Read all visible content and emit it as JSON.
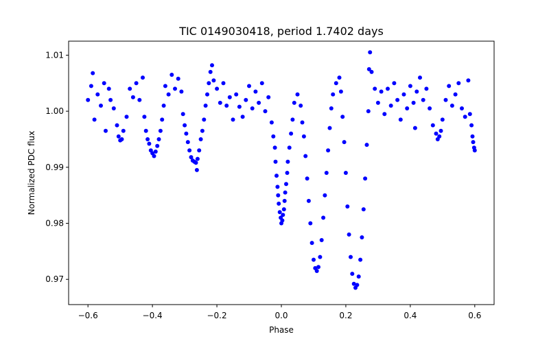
{
  "chart_data": {
    "type": "scatter",
    "title": "TIC 0149030418, period 1.7402 days",
    "xlabel": "Phase",
    "ylabel": "Normalized PDC flux",
    "xlim": [
      -0.66,
      0.66
    ],
    "ylim": [
      0.9655,
      1.0125
    ],
    "x_ticks": [
      -0.6,
      -0.4,
      -0.2,
      0.0,
      0.2,
      0.4,
      0.6
    ],
    "x_tick_labels": [
      "−0.6",
      "−0.4",
      "−0.2",
      "0.0",
      "0.2",
      "0.4",
      "0.6"
    ],
    "y_ticks": [
      0.97,
      0.98,
      0.99,
      1.0,
      1.01
    ],
    "y_tick_labels": [
      "0.97",
      "0.98",
      "0.99",
      "1.00",
      "1.01"
    ],
    "grid": false,
    "marker_color": "#0000ff",
    "series": [
      {
        "points": [
          [
            -0.6,
            1.002
          ],
          [
            -0.59,
            1.0045
          ],
          [
            -0.585,
            1.0068
          ],
          [
            -0.58,
            0.9985
          ],
          [
            -0.57,
            1.003
          ],
          [
            -0.56,
            1.001
          ],
          [
            -0.55,
            1.005
          ],
          [
            -0.545,
            0.9965
          ],
          [
            -0.535,
            1.004
          ],
          [
            -0.53,
            1.002
          ],
          [
            -0.52,
            1.0005
          ],
          [
            -0.51,
            0.9975
          ],
          [
            -0.505,
            0.9955
          ],
          [
            -0.5,
            0.9948
          ],
          [
            -0.495,
            0.995
          ],
          [
            -0.49,
            0.9965
          ],
          [
            -0.48,
            0.999
          ],
          [
            -0.47,
            1.004
          ],
          [
            -0.46,
            1.0025
          ],
          [
            -0.45,
            1.005
          ],
          [
            -0.44,
            1.002
          ],
          [
            -0.43,
            1.006
          ],
          [
            -0.425,
            0.999
          ],
          [
            -0.42,
            0.9965
          ],
          [
            -0.415,
            0.995
          ],
          [
            -0.41,
            0.9942
          ],
          [
            -0.405,
            0.993
          ],
          [
            -0.4,
            0.9925
          ],
          [
            -0.395,
            0.992
          ],
          [
            -0.39,
            0.9928
          ],
          [
            -0.385,
            0.9938
          ],
          [
            -0.38,
            0.995
          ],
          [
            -0.375,
            0.9965
          ],
          [
            -0.37,
            0.9985
          ],
          [
            -0.365,
            1.001
          ],
          [
            -0.36,
            1.0045
          ],
          [
            -0.35,
            1.003
          ],
          [
            -0.34,
            1.0065
          ],
          [
            -0.33,
            1.004
          ],
          [
            -0.32,
            1.0058
          ],
          [
            -0.31,
            1.0035
          ],
          [
            -0.305,
            0.9995
          ],
          [
            -0.3,
            0.9975
          ],
          [
            -0.295,
            0.996
          ],
          [
            -0.29,
            0.9945
          ],
          [
            -0.285,
            0.993
          ],
          [
            -0.28,
            0.9918
          ],
          [
            -0.275,
            0.9912
          ],
          [
            -0.27,
            0.991
          ],
          [
            -0.265,
            0.9908
          ],
          [
            -0.262,
            0.9895
          ],
          [
            -0.26,
            0.9915
          ],
          [
            -0.255,
            0.993
          ],
          [
            -0.25,
            0.995
          ],
          [
            -0.245,
            0.9965
          ],
          [
            -0.24,
            0.9985
          ],
          [
            -0.235,
            1.001
          ],
          [
            -0.23,
            1.003
          ],
          [
            -0.225,
            1.005
          ],
          [
            -0.22,
            1.007
          ],
          [
            -0.215,
            1.0082
          ],
          [
            -0.21,
            1.0055
          ],
          [
            -0.2,
            1.004
          ],
          [
            -0.19,
            1.0015
          ],
          [
            -0.18,
            1.005
          ],
          [
            -0.17,
            1.001
          ],
          [
            -0.16,
            1.0025
          ],
          [
            -0.15,
            0.9985
          ],
          [
            -0.14,
            1.003
          ],
          [
            -0.13,
            1.0008
          ],
          [
            -0.12,
            0.999
          ],
          [
            -0.11,
            1.002
          ],
          [
            -0.1,
            1.0045
          ],
          [
            -0.09,
            1.0005
          ],
          [
            -0.08,
            1.0035
          ],
          [
            -0.07,
            1.0015
          ],
          [
            -0.06,
            1.005
          ],
          [
            -0.05,
            1.0
          ],
          [
            -0.04,
            1.0025
          ],
          [
            -0.03,
            0.998
          ],
          [
            -0.025,
            0.9955
          ],
          [
            -0.02,
            0.9935
          ],
          [
            -0.018,
            0.991
          ],
          [
            -0.015,
            0.9885
          ],
          [
            -0.012,
            0.9865
          ],
          [
            -0.01,
            0.985
          ],
          [
            -0.008,
            0.9835
          ],
          [
            -0.005,
            0.982
          ],
          [
            -0.002,
            0.981
          ],
          [
            0.0,
            0.98
          ],
          [
            0.003,
            0.9805
          ],
          [
            0.005,
            0.9815
          ],
          [
            0.008,
            0.9825
          ],
          [
            0.01,
            0.984
          ],
          [
            0.012,
            0.9855
          ],
          [
            0.015,
            0.987
          ],
          [
            0.018,
            0.989
          ],
          [
            0.02,
            0.991
          ],
          [
            0.025,
            0.9935
          ],
          [
            0.03,
            0.996
          ],
          [
            0.035,
            0.9985
          ],
          [
            0.04,
            1.0015
          ],
          [
            0.05,
            1.003
          ],
          [
            0.06,
            1.001
          ],
          [
            0.065,
            0.998
          ],
          [
            0.07,
            0.9955
          ],
          [
            0.075,
            0.992
          ],
          [
            0.08,
            0.988
          ],
          [
            0.085,
            0.984
          ],
          [
            0.09,
            0.98
          ],
          [
            0.095,
            0.9765
          ],
          [
            0.1,
            0.9735
          ],
          [
            0.105,
            0.972
          ],
          [
            0.11,
            0.9715
          ],
          [
            0.115,
            0.9722
          ],
          [
            0.12,
            0.974
          ],
          [
            0.125,
            0.977
          ],
          [
            0.13,
            0.981
          ],
          [
            0.135,
            0.985
          ],
          [
            0.14,
            0.989
          ],
          [
            0.145,
            0.993
          ],
          [
            0.15,
            0.997
          ],
          [
            0.155,
            1.0005
          ],
          [
            0.16,
            1.003
          ],
          [
            0.17,
            1.005
          ],
          [
            0.18,
            1.006
          ],
          [
            0.185,
            1.0035
          ],
          [
            0.19,
            0.999
          ],
          [
            0.195,
            0.9945
          ],
          [
            0.2,
            0.989
          ],
          [
            0.205,
            0.983
          ],
          [
            0.21,
            0.978
          ],
          [
            0.215,
            0.974
          ],
          [
            0.22,
            0.971
          ],
          [
            0.225,
            0.9692
          ],
          [
            0.23,
            0.9685
          ],
          [
            0.235,
            0.969
          ],
          [
            0.24,
            0.9705
          ],
          [
            0.245,
            0.9735
          ],
          [
            0.25,
            0.9775
          ],
          [
            0.255,
            0.9825
          ],
          [
            0.26,
            0.988
          ],
          [
            0.265,
            0.994
          ],
          [
            0.27,
            1.0
          ],
          [
            0.272,
            1.0075
          ],
          [
            0.275,
            1.0105
          ],
          [
            0.28,
            1.007
          ],
          [
            0.29,
            1.004
          ],
          [
            0.3,
            1.0015
          ],
          [
            0.31,
            1.0035
          ],
          [
            0.32,
            0.9995
          ],
          [
            0.33,
            1.004
          ],
          [
            0.34,
            1.001
          ],
          [
            0.35,
            1.005
          ],
          [
            0.36,
            1.002
          ],
          [
            0.37,
            0.9985
          ],
          [
            0.38,
            1.003
          ],
          [
            0.39,
            1.0005
          ],
          [
            0.4,
            1.0045
          ],
          [
            0.41,
            1.0015
          ],
          [
            0.415,
            0.997
          ],
          [
            0.42,
            1.0035
          ],
          [
            0.43,
            1.006
          ],
          [
            0.44,
            1.002
          ],
          [
            0.45,
            1.004
          ],
          [
            0.46,
            1.0005
          ],
          [
            0.47,
            0.9975
          ],
          [
            0.48,
            0.996
          ],
          [
            0.485,
            0.995
          ],
          [
            0.49,
            0.9955
          ],
          [
            0.495,
            0.9965
          ],
          [
            0.5,
            0.9985
          ],
          [
            0.51,
            1.002
          ],
          [
            0.52,
            1.0045
          ],
          [
            0.53,
            1.001
          ],
          [
            0.54,
            1.003
          ],
          [
            0.55,
            1.005
          ],
          [
            0.56,
            1.0005
          ],
          [
            0.57,
            0.999
          ],
          [
            0.58,
            1.0055
          ],
          [
            0.585,
            0.9995
          ],
          [
            0.59,
            0.9975
          ],
          [
            0.593,
            0.9955
          ],
          [
            0.595,
            0.9945
          ],
          [
            0.598,
            0.9935
          ],
          [
            0.6,
            0.993
          ]
        ]
      }
    ]
  }
}
